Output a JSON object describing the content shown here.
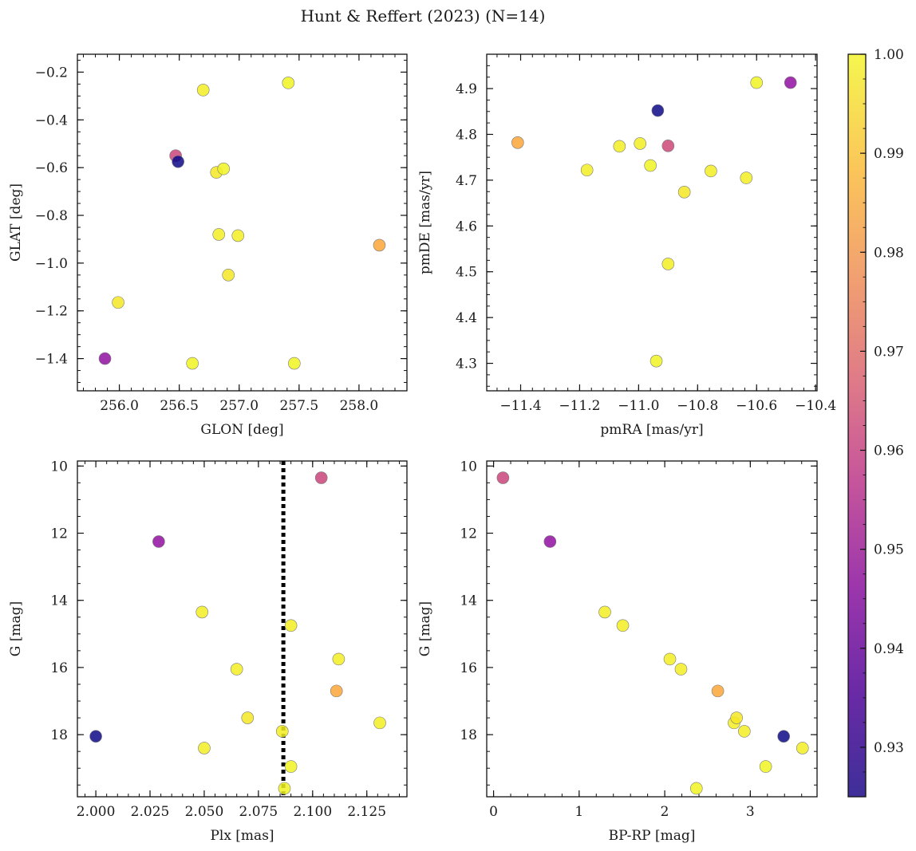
{
  "figure": {
    "title": "Hunt & Reffert (2023) (N=14)"
  },
  "colorbar": {
    "vmin": 0.925,
    "vmax": 1.0,
    "colormap": "plasma",
    "ticks": [
      0.93,
      0.94,
      0.95,
      0.96,
      0.97,
      0.98,
      0.99,
      1.0
    ],
    "tick_labels": [
      "0.93",
      "0.94",
      "0.95",
      "0.96",
      "0.97",
      "0.98",
      "0.99",
      "1.00"
    ]
  },
  "chart_data": [
    {
      "type": "scatter",
      "xlabel": "GLON [deg]",
      "ylabel": "GLAT [deg]",
      "xlim": [
        255.65,
        258.4
      ],
      "ylim": [
        -1.535,
        -0.125
      ],
      "y_inverted": false,
      "xticks": [
        256.0,
        256.5,
        257.0,
        257.5,
        258.0
      ],
      "xtick_labels": [
        "256.0",
        "256.5",
        "257.0",
        "257.5",
        "258.0"
      ],
      "yticks": [
        -1.4,
        -1.2,
        -1.0,
        -0.8,
        -0.6,
        -0.4,
        -0.2
      ],
      "ytick_labels": [
        "−1.4",
        "−1.2",
        "−1.0",
        "−0.8",
        "−0.6",
        "−0.4",
        "−0.2"
      ],
      "points": [
        {
          "x": 255.88,
          "y": -1.4,
          "c": 0.948
        },
        {
          "x": 255.99,
          "y": -1.165,
          "c": 0.997
        },
        {
          "x": 256.47,
          "y": -0.55,
          "c": 0.962
        },
        {
          "x": 256.49,
          "y": -0.575,
          "c": 0.925
        },
        {
          "x": 256.61,
          "y": -1.42,
          "c": 0.999
        },
        {
          "x": 256.7,
          "y": -0.275,
          "c": 0.998
        },
        {
          "x": 256.81,
          "y": -0.62,
          "c": 0.997
        },
        {
          "x": 256.83,
          "y": -0.88,
          "c": 0.998
        },
        {
          "x": 256.87,
          "y": -0.605,
          "c": 0.999
        },
        {
          "x": 256.91,
          "y": -1.05,
          "c": 0.997
        },
        {
          "x": 256.99,
          "y": -0.885,
          "c": 0.998
        },
        {
          "x": 257.41,
          "y": -0.245,
          "c": 0.999
        },
        {
          "x": 257.46,
          "y": -1.42,
          "c": 0.999
        },
        {
          "x": 258.17,
          "y": -0.925,
          "c": 0.985
        }
      ]
    },
    {
      "type": "scatter",
      "xlabel": "pmRA [mas/yr]",
      "ylabel": "pmDE [mas/yr]",
      "xlim": [
        -11.515,
        -10.395
      ],
      "ylim": [
        4.24,
        4.975
      ],
      "y_inverted": false,
      "xticks": [
        -11.4,
        -11.2,
        -11.0,
        -10.8,
        -10.6,
        -10.4
      ],
      "xtick_labels": [
        "−11.4",
        "−11.2",
        "−11.0",
        "−10.8",
        "−10.6",
        "−10.4"
      ],
      "yticks": [
        4.3,
        4.4,
        4.5,
        4.6,
        4.7,
        4.8,
        4.9
      ],
      "ytick_labels": [
        "4.3",
        "4.4",
        "4.5",
        "4.6",
        "4.7",
        "4.8",
        "4.9"
      ],
      "points": [
        {
          "x": -11.41,
          "y": 4.782,
          "c": 0.985
        },
        {
          "x": -11.175,
          "y": 4.722,
          "c": 0.998
        },
        {
          "x": -11.065,
          "y": 4.774,
          "c": 0.998
        },
        {
          "x": -10.995,
          "y": 4.78,
          "c": 0.998
        },
        {
          "x": -10.96,
          "y": 4.732,
          "c": 0.999
        },
        {
          "x": -10.935,
          "y": 4.852,
          "c": 0.925
        },
        {
          "x": -10.94,
          "y": 4.305,
          "c": 0.999
        },
        {
          "x": -10.9,
          "y": 4.775,
          "c": 0.963
        },
        {
          "x": -10.9,
          "y": 4.517,
          "c": 0.998
        },
        {
          "x": -10.845,
          "y": 4.674,
          "c": 0.997
        },
        {
          "x": -10.755,
          "y": 4.72,
          "c": 0.998
        },
        {
          "x": -10.635,
          "y": 4.705,
          "c": 0.998
        },
        {
          "x": -10.6,
          "y": 4.913,
          "c": 0.999
        },
        {
          "x": -10.485,
          "y": 4.913,
          "c": 0.948
        }
      ]
    },
    {
      "type": "scatter",
      "xlabel": "Plx [mas]",
      "ylabel": "G [mag]",
      "xlim": [
        1.9915,
        2.1435
      ],
      "ylim": [
        19.85,
        9.85
      ],
      "y_inverted": true,
      "xticks": [
        2.0,
        2.025,
        2.05,
        2.075,
        2.1,
        2.125
      ],
      "xtick_labels": [
        "2.000",
        "2.025",
        "2.050",
        "2.075",
        "2.100",
        "2.125"
      ],
      "yticks": [
        10,
        12,
        14,
        16,
        18
      ],
      "ytick_labels": [
        "10",
        "12",
        "14",
        "16",
        "18"
      ],
      "vline": {
        "x": 2.0865,
        "style": "dotted"
      },
      "points": [
        {
          "x": 2.0,
          "y": 18.05,
          "c": 0.925
        },
        {
          "x": 2.029,
          "y": 12.25,
          "c": 0.948
        },
        {
          "x": 2.049,
          "y": 14.35,
          "c": 0.998
        },
        {
          "x": 2.05,
          "y": 18.4,
          "c": 0.998
        },
        {
          "x": 2.065,
          "y": 16.05,
          "c": 0.998
        },
        {
          "x": 2.07,
          "y": 17.5,
          "c": 0.997
        },
        {
          "x": 2.086,
          "y": 17.9,
          "c": 0.998
        },
        {
          "x": 2.087,
          "y": 19.6,
          "c": 0.999
        },
        {
          "x": 2.09,
          "y": 14.75,
          "c": 0.998
        },
        {
          "x": 2.09,
          "y": 18.95,
          "c": 0.999
        },
        {
          "x": 2.104,
          "y": 10.35,
          "c": 0.962
        },
        {
          "x": 2.111,
          "y": 16.7,
          "c": 0.985
        },
        {
          "x": 2.112,
          "y": 15.75,
          "c": 0.998
        },
        {
          "x": 2.131,
          "y": 17.65,
          "c": 0.998
        }
      ]
    },
    {
      "type": "scatter",
      "xlabel": "BP-RP [mag]",
      "ylabel": "G [mag]",
      "xlim": [
        -0.08,
        3.78
      ],
      "ylim": [
        19.85,
        9.85
      ],
      "y_inverted": true,
      "xticks": [
        0,
        1,
        2,
        3
      ],
      "xtick_labels": [
        "0",
        "1",
        "2",
        "3"
      ],
      "yticks": [
        10,
        12,
        14,
        16,
        18
      ],
      "ytick_labels": [
        "10",
        "12",
        "14",
        "16",
        "18"
      ],
      "points": [
        {
          "x": 0.11,
          "y": 10.35,
          "c": 0.962
        },
        {
          "x": 0.66,
          "y": 12.25,
          "c": 0.948
        },
        {
          "x": 1.3,
          "y": 14.35,
          "c": 0.998
        },
        {
          "x": 1.51,
          "y": 14.75,
          "c": 0.998
        },
        {
          "x": 2.06,
          "y": 15.75,
          "c": 0.998
        },
        {
          "x": 2.19,
          "y": 16.05,
          "c": 0.998
        },
        {
          "x": 2.37,
          "y": 19.6,
          "c": 0.999
        },
        {
          "x": 2.62,
          "y": 16.7,
          "c": 0.985
        },
        {
          "x": 2.81,
          "y": 17.65,
          "c": 0.998
        },
        {
          "x": 2.84,
          "y": 17.5,
          "c": 0.997
        },
        {
          "x": 2.93,
          "y": 17.9,
          "c": 0.998
        },
        {
          "x": 3.18,
          "y": 18.95,
          "c": 0.999
        },
        {
          "x": 3.39,
          "y": 18.05,
          "c": 0.925
        },
        {
          "x": 3.61,
          "y": 18.4,
          "c": 0.998
        }
      ]
    }
  ]
}
